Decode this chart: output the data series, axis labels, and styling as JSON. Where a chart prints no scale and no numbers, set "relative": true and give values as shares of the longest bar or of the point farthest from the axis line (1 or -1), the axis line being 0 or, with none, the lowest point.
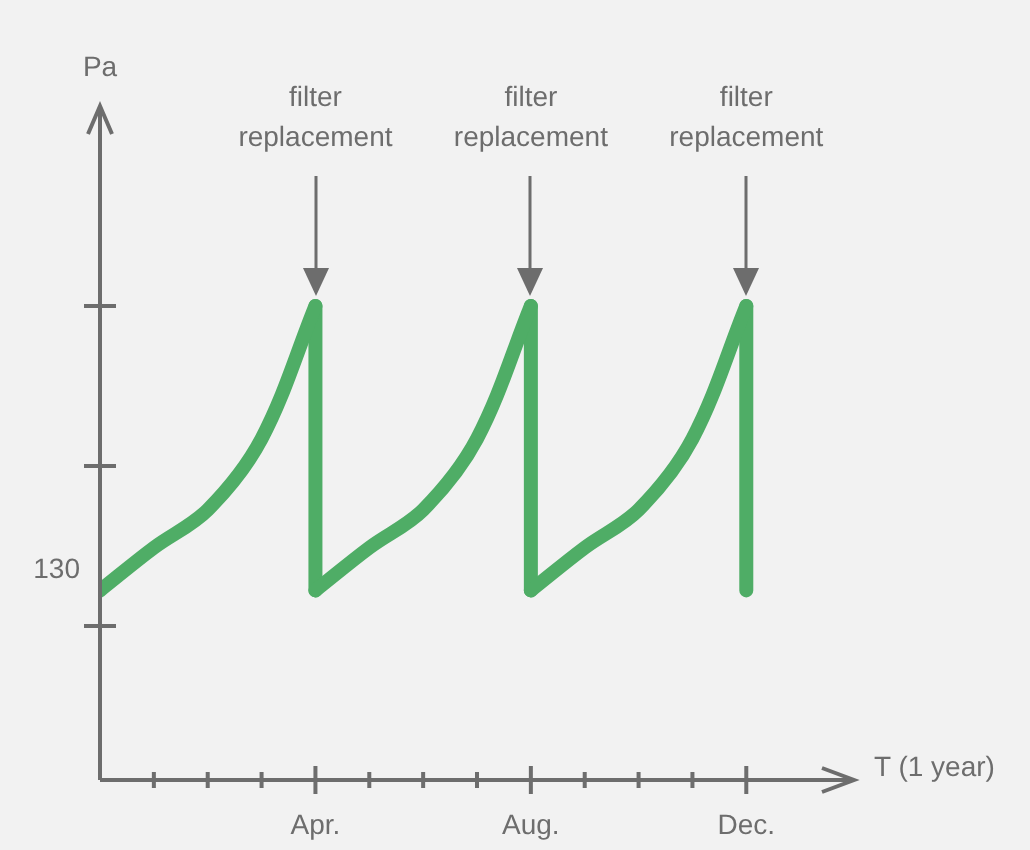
{
  "chart_data": {
    "type": "line",
    "xlabel": "T (1 year)",
    "relative": true,
    "categories": [
      null,
      null,
      null,
      null,
      "Apr.",
      null,
      null,
      null,
      "Aug.",
      null,
      null,
      null,
      "Dec."
    ],
    "series": [
      {
        "color": "#4fad66",
        "values": [
          0.4,
          0.49,
          0.57,
          0.72,
          1,
          null,
          null,
          null,
          null,
          null,
          null,
          null,
          null
        ]
      },
      {
        "color": "#4fad66",
        "values": [
          null,
          null,
          null,
          null,
          0.4,
          0.49,
          0.57,
          0.72,
          1,
          null,
          null,
          null,
          null
        ]
      },
      {
        "color": "#4fad66",
        "values": [
          null,
          null,
          null,
          null,
          null,
          null,
          null,
          null,
          0.4,
          0.49,
          0.57,
          0.72,
          1
        ]
      },
      {
        "color": "#4fad66",
        "x": [
          "Apr.",
          "Apr.",
          "Apr.",
          "Aug.",
          "Aug.",
          "Aug.",
          "Dec.",
          "Dec."
        ],
        "values": [
          1,
          0.4,
          null,
          1,
          0.4,
          null,
          1,
          0.4
        ]
      }
    ],
    "annotations": [
      "130",
      "Pa",
      "filter\nreplacement",
      "filter\nreplacement",
      "filter\nreplacement"
    ],
    "marker": "none",
    "line_style": "solid"
  }
}
